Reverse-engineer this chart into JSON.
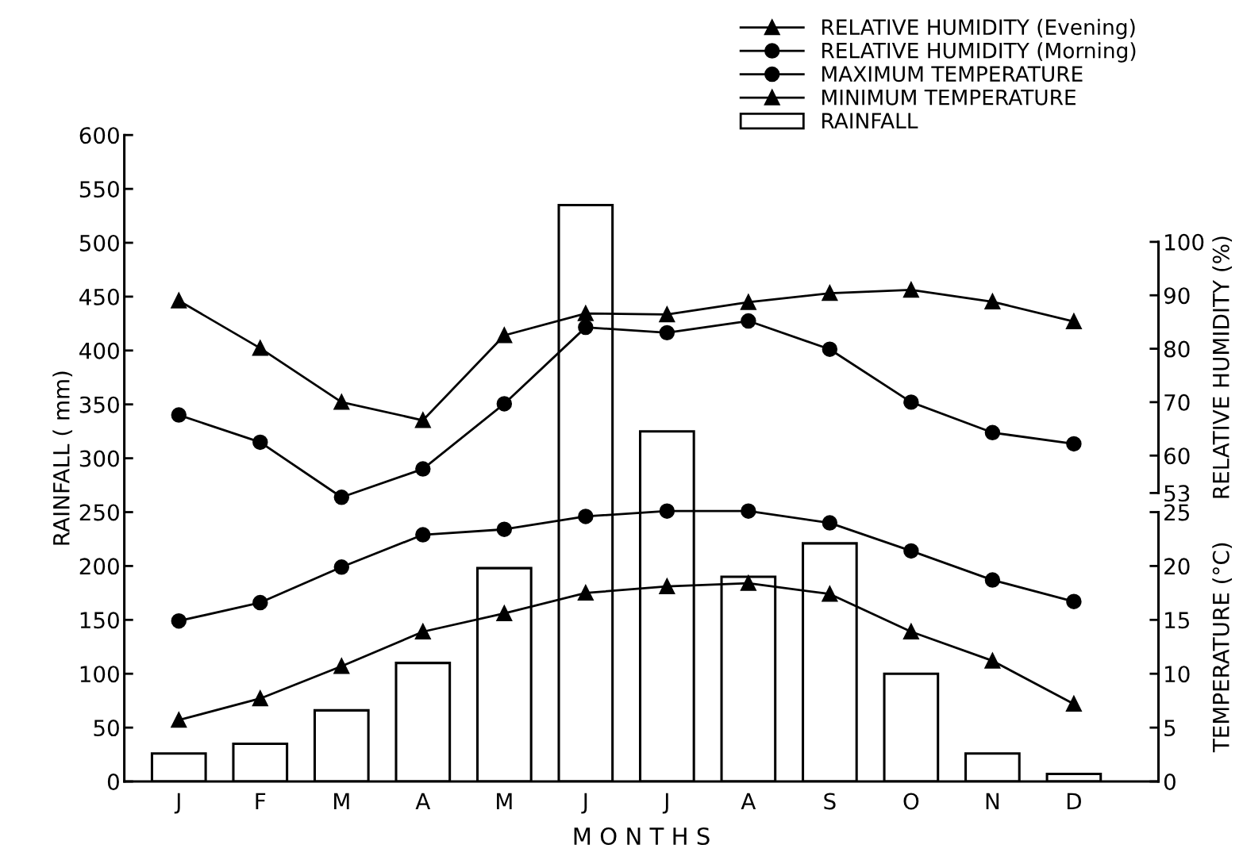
{
  "chart_data": {
    "type": "line",
    "xlabel": "M O N T H S",
    "ylabel": "RAINFALL ( mm)",
    "y2label": "RELATIVE HUMIDITY (%)",
    "y3label": "TEMPERATURE (°C)",
    "categories": [
      "J",
      "F",
      "M",
      "A",
      "M",
      "J",
      "J",
      "A",
      "S",
      "O",
      "N",
      "D"
    ],
    "ylim": [
      0,
      600
    ],
    "yticks": [
      0,
      50,
      100,
      150,
      200,
      250,
      300,
      350,
      400,
      450,
      500,
      550,
      600
    ],
    "y2lim": [
      -1,
      120
    ],
    "y2ticks": [
      53,
      60,
      70,
      80,
      90,
      100
    ],
    "y3lim": [
      0,
      60
    ],
    "y3ticks": [
      0,
      5,
      10,
      15,
      20,
      25
    ],
    "series": [
      {
        "name": "RELATIVE HUMIDITY (Evening)",
        "axis": "y2",
        "color": "#000000",
        "marker": "triangle",
        "values": [
          89.0,
          80.1,
          70.0,
          66.6,
          82.5,
          86.6,
          86.4,
          88.7,
          90.4,
          91.0,
          88.8,
          85.1
        ]
      },
      {
        "name": "RELATIVE HUMIDITY (Morning)",
        "axis": "y2",
        "color": "#000000",
        "marker": "circle",
        "values": [
          67.6,
          62.5,
          52.2,
          57.5,
          69.7,
          84.0,
          83.0,
          85.2,
          79.9,
          70.0,
          64.3,
          62.2
        ]
      },
      {
        "name": "MAXIMUM TEMPERATURE",
        "axis": "y3",
        "color": "#000000",
        "marker": "circle",
        "values": [
          14.9,
          16.6,
          19.9,
          22.9,
          23.4,
          24.6,
          25.1,
          25.1,
          24.0,
          21.4,
          18.7,
          16.7
        ]
      },
      {
        "name": "MINIMUM TEMPERATURE",
        "axis": "y3",
        "color": "#000000",
        "marker": "triangle",
        "values": [
          5.7,
          7.7,
          10.7,
          13.9,
          15.6,
          17.5,
          18.1,
          18.4,
          17.4,
          13.9,
          11.2,
          7.2
        ]
      },
      {
        "name": "RAINFALL",
        "type": "bar",
        "axis": "y",
        "color": "#ffffff",
        "values": [
          26,
          35,
          66,
          110,
          198,
          535,
          325,
          190,
          221,
          100,
          26,
          7
        ]
      }
    ],
    "legend": "top right",
    "grid": false,
    "line_style": "solid"
  }
}
